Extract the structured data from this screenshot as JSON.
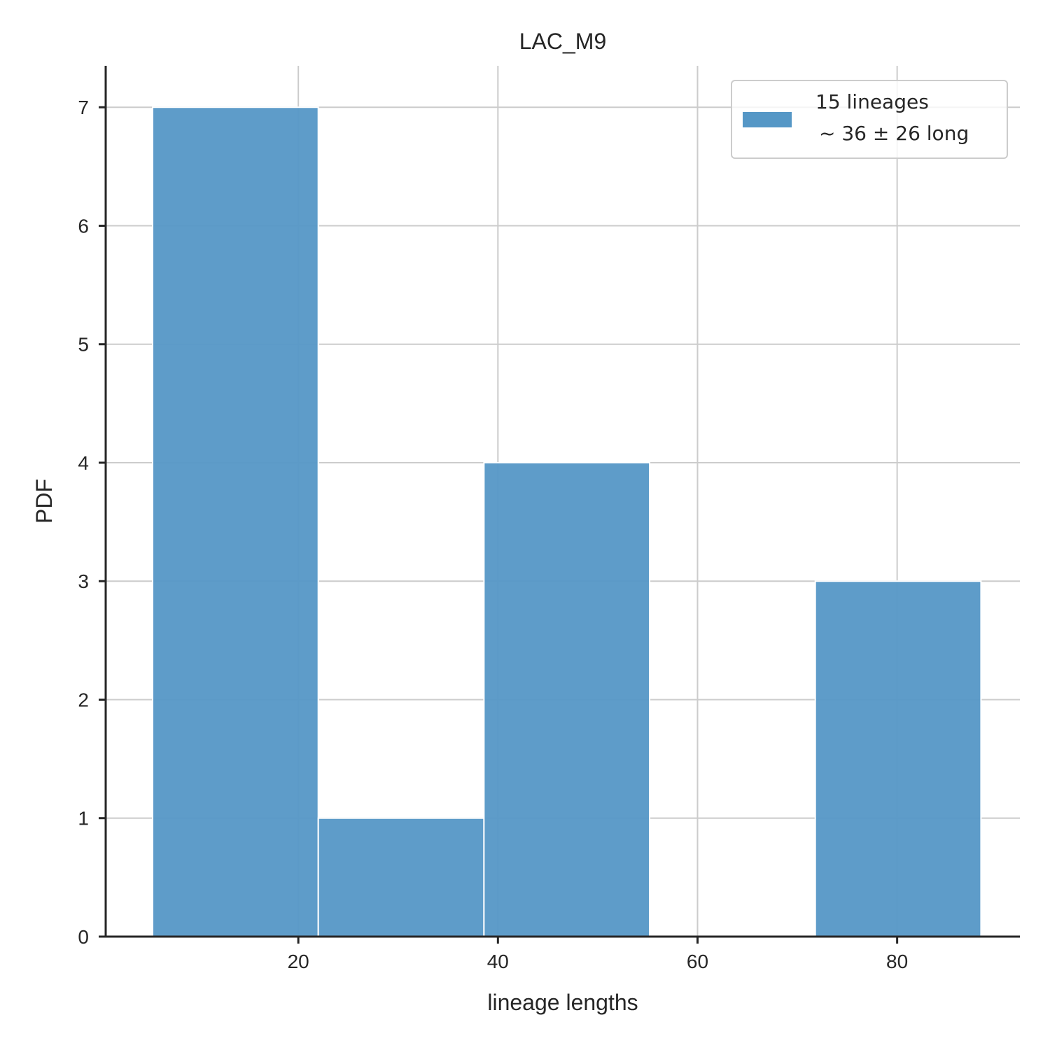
{
  "chart_data": {
    "type": "bar",
    "title": "LAC_M9",
    "xlabel": "lineage lengths",
    "ylabel": "PDF",
    "bin_edges": [
      5.4,
      22.0,
      38.6,
      55.2,
      71.8,
      88.4
    ],
    "counts": [
      7,
      1,
      4,
      0,
      3
    ],
    "xlim": [
      0.7,
      92.3
    ],
    "ylim": [
      0,
      7.35
    ],
    "x_ticks": [
      20,
      40,
      60,
      80
    ],
    "y_ticks": [
      0,
      1,
      2,
      3,
      4,
      5,
      6,
      7
    ],
    "grid": true,
    "bar_color": "#5597c6",
    "legend": {
      "position": "top-right",
      "entries": [
        {
          "line1": "15 lineages",
          "line2": "~ 36 ± 26 long"
        }
      ]
    }
  }
}
